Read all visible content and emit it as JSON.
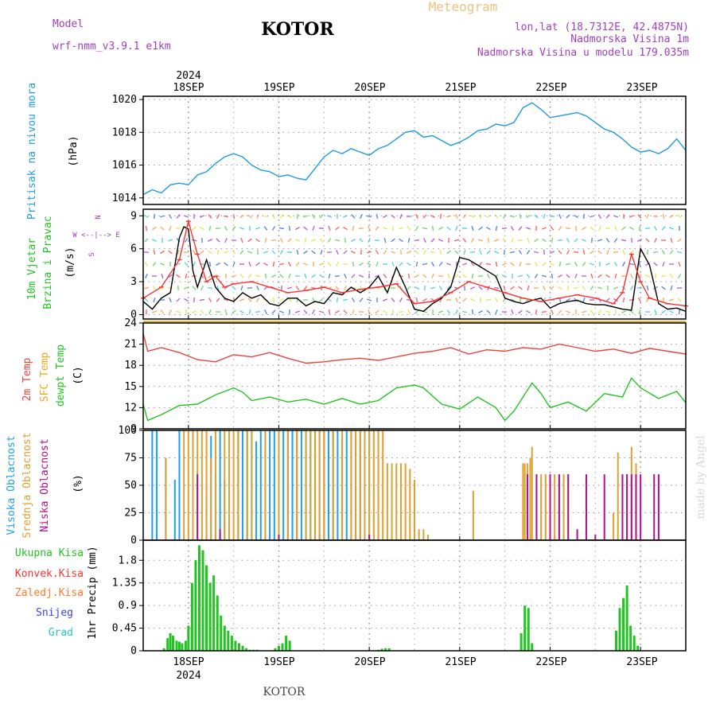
{
  "header": {
    "model_label": "Model",
    "model_name": "wrf-nmm_v3.9.1 e1km",
    "title": "KOTOR",
    "meteogram": "Meteogram",
    "lonlat": "lon,lat (18.7312E, 42.4875N)",
    "elev": "Nadmorska Visina 1m",
    "elev_model": "Nadmorska Visina u modelu 179.035m",
    "footer": "KOTOR",
    "credit": "made by Angel"
  },
  "colors": {
    "pressure": "#1e9be0",
    "wind_speed": "#000000",
    "wind_gust": "#ff3030",
    "temp2m": "#e8443c",
    "sfc_temp": "#e8a820",
    "dewpt": "#22c422",
    "high_cloud": "#20a0e6",
    "mid_cloud": "#e0a030",
    "low_cloud": "#b0108e",
    "precip_total": "#22c422",
    "precip_conv": "#ff3030",
    "precip_frozen": "#ff7a2a",
    "snow": "#4040e0",
    "hail": "#20c8c8"
  },
  "time_axis": {
    "year": "2024",
    "days": [
      "18SEP",
      "19SEP",
      "20SEP",
      "21SEP",
      "22SEP",
      "23SEP"
    ]
  },
  "chart_data": [
    {
      "type": "line",
      "panel": "pressure",
      "ylabel": [
        "Pritisak na nivou mora",
        "(hPa)"
      ],
      "ylim": [
        1013.6,
        1020.2
      ],
      "yticks": [
        1014,
        1016,
        1018,
        1020
      ],
      "xlim": [
        17.5,
        23.5
      ],
      "grid": true,
      "series": [
        {
          "key": "pressure",
          "x": [
            17.5,
            17.6,
            17.7,
            17.8,
            17.9,
            18.0,
            18.1,
            18.2,
            18.3,
            18.4,
            18.5,
            18.6,
            18.7,
            18.8,
            18.9,
            19.0,
            19.1,
            19.2,
            19.3,
            19.4,
            19.5,
            19.6,
            19.7,
            19.8,
            19.9,
            20.0,
            20.1,
            20.2,
            20.3,
            20.4,
            20.5,
            20.6,
            20.7,
            20.8,
            20.9,
            21.0,
            21.1,
            21.2,
            21.3,
            21.4,
            21.5,
            21.6,
            21.7,
            21.8,
            21.9,
            22.0,
            22.1,
            22.2,
            22.3,
            22.4,
            22.5,
            22.6,
            22.7,
            22.8,
            22.9,
            23.0,
            23.1,
            23.2,
            23.3,
            23.4,
            23.5
          ],
          "y": [
            1014.2,
            1014.5,
            1014.3,
            1014.8,
            1014.9,
            1014.8,
            1015.4,
            1015.6,
            1016.1,
            1016.5,
            1016.7,
            1016.5,
            1016.0,
            1015.7,
            1015.6,
            1015.3,
            1015.4,
            1015.2,
            1015.1,
            1015.8,
            1016.5,
            1016.9,
            1016.7,
            1017.0,
            1016.8,
            1016.6,
            1017.0,
            1017.2,
            1017.6,
            1018.0,
            1018.1,
            1017.7,
            1017.8,
            1017.5,
            1017.2,
            1017.4,
            1017.7,
            1018.1,
            1018.2,
            1018.5,
            1018.4,
            1018.6,
            1019.5,
            1019.8,
            1019.4,
            1018.9,
            1019.0,
            1019.1,
            1019.2,
            1019.0,
            1018.6,
            1018.2,
            1018.0,
            1017.6,
            1017.1,
            1016.8,
            1016.9,
            1016.7,
            1017.0,
            1017.6,
            1016.9
          ]
        }
      ]
    },
    {
      "type": "line",
      "panel": "wind",
      "ylabel": [
        "10m Vjetar",
        "Brzina i Pravac",
        "(m/s)"
      ],
      "compass": [
        "N",
        "W <--|--> E",
        "S"
      ],
      "ylim": [
        -0.4,
        9.6
      ],
      "yticks": [
        0,
        3,
        6,
        9
      ],
      "xlim": [
        17.5,
        23.5
      ],
      "grid": true,
      "series": [
        {
          "key": "wind_speed",
          "name": "speed",
          "x": [
            17.5,
            17.6,
            17.7,
            17.8,
            17.9,
            17.95,
            18.0,
            18.05,
            18.1,
            18.2,
            18.3,
            18.4,
            18.5,
            18.6,
            18.7,
            18.8,
            18.9,
            19.0,
            19.1,
            19.2,
            19.3,
            19.4,
            19.5,
            19.6,
            19.7,
            19.8,
            19.9,
            20.0,
            20.1,
            20.2,
            20.3,
            20.4,
            20.5,
            20.6,
            20.7,
            20.8,
            20.9,
            21.0,
            21.1,
            21.2,
            21.3,
            21.4,
            21.5,
            21.6,
            21.7,
            21.8,
            21.9,
            22.0,
            22.1,
            22.2,
            22.3,
            22.4,
            22.5,
            22.6,
            22.7,
            22.8,
            22.9,
            23.0,
            23.1,
            23.2,
            23.3,
            23.4,
            23.5
          ],
          "y": [
            1.2,
            0.5,
            1.5,
            2.0,
            7.0,
            8.0,
            7.8,
            4.0,
            2.5,
            5.0,
            2.5,
            1.5,
            1.2,
            2.0,
            1.5,
            1.8,
            1.0,
            0.8,
            1.5,
            1.5,
            0.8,
            1.2,
            1.0,
            2.0,
            1.8,
            2.5,
            2.0,
            2.5,
            3.5,
            2.0,
            4.3,
            2.5,
            0.5,
            0.3,
            1.0,
            1.5,
            2.5,
            5.2,
            5.0,
            4.5,
            4.0,
            3.5,
            1.5,
            1.2,
            1.0,
            1.3,
            1.5,
            0.6,
            1.0,
            1.2,
            1.3,
            1.0,
            0.9,
            0.9,
            0.7,
            0.5,
            0.4,
            6.0,
            4.5,
            1.0,
            0.5,
            0.6,
            0.3
          ]
        },
        {
          "key": "wind_gust",
          "name": "gust",
          "x": [
            17.5,
            17.7,
            17.9,
            18.0,
            18.1,
            18.2,
            18.3,
            18.4,
            18.5,
            18.7,
            18.9,
            19.1,
            19.3,
            19.5,
            19.7,
            19.9,
            20.1,
            20.3,
            20.5,
            20.7,
            20.9,
            21.1,
            21.3,
            21.5,
            21.7,
            21.9,
            22.1,
            22.3,
            22.5,
            22.7,
            22.8,
            22.9,
            23.0,
            23.1,
            23.3,
            23.5
          ],
          "y": [
            1.5,
            2.5,
            5.0,
            8.5,
            5.5,
            3.0,
            3.5,
            2.5,
            2.8,
            3.0,
            2.5,
            2.0,
            2.2,
            2.5,
            2.0,
            2.3,
            2.5,
            2.8,
            1.0,
            1.2,
            2.0,
            3.0,
            2.5,
            2.0,
            1.5,
            1.2,
            1.5,
            1.8,
            1.5,
            1.0,
            2.0,
            5.5,
            3.0,
            1.5,
            1.0,
            0.8
          ]
        }
      ]
    },
    {
      "type": "line",
      "panel": "temperature",
      "ylabel": [
        "2m Temp",
        "SFC Temp",
        "dewpt Temp",
        "(C)"
      ],
      "ylim": [
        9,
        24
      ],
      "yticks": [
        9,
        12,
        15,
        18,
        21,
        24
      ],
      "xlim": [
        17.5,
        23.5
      ],
      "grid": true,
      "series": [
        {
          "key": "temp2m",
          "name": "2m Temp",
          "x": [
            17.5,
            17.55,
            17.7,
            17.9,
            18.1,
            18.3,
            18.5,
            18.7,
            18.9,
            19.1,
            19.3,
            19.5,
            19.7,
            19.9,
            20.1,
            20.3,
            20.5,
            20.7,
            20.9,
            21.1,
            21.3,
            21.5,
            21.7,
            21.9,
            22.1,
            22.3,
            22.5,
            22.7,
            22.9,
            23.1,
            23.3,
            23.5
          ],
          "y": [
            22.5,
            20.0,
            20.5,
            19.8,
            18.8,
            18.5,
            19.5,
            19.2,
            19.8,
            19.0,
            18.3,
            18.5,
            18.8,
            19.0,
            18.7,
            19.2,
            19.7,
            20.0,
            20.5,
            19.6,
            20.2,
            20.0,
            20.5,
            20.3,
            21.0,
            20.5,
            20.0,
            20.3,
            19.7,
            20.4,
            20.0,
            19.6
          ]
        },
        {
          "key": "sfc_temp",
          "name": "SFC Temp",
          "x": [
            17.5,
            23.5
          ],
          "y": [
            24.2,
            24.2
          ]
        },
        {
          "key": "dewpt",
          "name": "dewpt Temp",
          "x": [
            17.5,
            17.55,
            17.7,
            17.9,
            18.1,
            18.3,
            18.5,
            18.6,
            18.7,
            18.9,
            19.1,
            19.3,
            19.5,
            19.7,
            19.9,
            20.1,
            20.3,
            20.5,
            20.6,
            20.8,
            21.0,
            21.2,
            21.4,
            21.5,
            21.6,
            21.8,
            21.9,
            22.0,
            22.2,
            22.4,
            22.6,
            22.8,
            22.9,
            23.0,
            23.2,
            23.4,
            23.5
          ],
          "y": [
            12.5,
            10.2,
            11.0,
            12.3,
            12.5,
            13.8,
            14.8,
            14.2,
            13.0,
            13.5,
            12.8,
            13.2,
            12.5,
            13.3,
            12.5,
            13.0,
            14.8,
            15.2,
            14.8,
            12.5,
            11.8,
            13.5,
            12.0,
            10.2,
            11.5,
            15.5,
            14.0,
            12.0,
            12.8,
            11.5,
            14.0,
            13.5,
            16.2,
            14.8,
            13.3,
            14.3,
            12.7
          ]
        }
      ]
    },
    {
      "type": "bar",
      "panel": "cloud",
      "ylabel": [
        "Visoka Oblacnost",
        "Srednja Oblacnost",
        "Niska Oblacnost",
        "(%)"
      ],
      "ylim": [
        0,
        100
      ],
      "yticks": [
        0,
        25,
        50,
        75,
        100
      ],
      "xlim": [
        17.5,
        23.5
      ],
      "grid": true,
      "series": [
        {
          "key": "high_cloud",
          "name": "Visoka Oblacnost",
          "x": [
            17.6,
            17.65,
            17.75,
            17.85,
            17.9,
            18.2,
            18.25,
            18.3,
            18.35,
            18.4,
            18.55,
            18.6,
            18.65,
            18.7,
            18.75,
            18.8,
            18.85,
            18.9,
            18.95,
            19.0,
            19.05,
            19.1,
            19.15,
            19.2,
            19.25,
            19.3,
            19.35,
            19.4,
            19.45,
            19.5,
            19.55,
            19.6,
            19.65,
            19.7,
            19.75,
            19.8,
            19.85,
            19.9,
            19.95,
            20.0
          ],
          "y": [
            100,
            100,
            75,
            55,
            100,
            40,
            95,
            60,
            100,
            55,
            100,
            100,
            100,
            100,
            90,
            100,
            100,
            100,
            100,
            95,
            100,
            100,
            100,
            100,
            100,
            100,
            100,
            100,
            100,
            100,
            100,
            100,
            100,
            95,
            100,
            100,
            95,
            100,
            100,
            100
          ]
        },
        {
          "key": "mid_cloud",
          "name": "Srednja Oblacnost",
          "x": [
            17.75,
            17.95,
            18.0,
            18.05,
            18.1,
            18.15,
            18.2,
            18.25,
            18.3,
            18.4,
            18.45,
            18.5,
            18.55,
            18.65,
            18.7,
            18.85,
            19.0,
            19.1,
            19.2,
            19.3,
            19.35,
            19.4,
            19.45,
            19.5,
            19.6,
            19.7,
            19.8,
            19.85,
            19.9,
            19.95,
            20.0,
            20.05,
            20.1,
            20.15,
            20.2,
            20.25,
            20.3,
            20.35,
            20.4,
            20.45,
            20.5,
            20.55,
            20.6,
            20.65,
            21.15,
            21.7,
            21.72,
            21.75,
            21.78,
            21.8,
            21.85,
            21.9,
            21.95,
            22.0,
            22.05,
            22.1,
            22.15,
            22.2,
            22.7,
            22.75,
            22.8,
            22.85,
            22.9,
            22.95
          ],
          "y": [
            75,
            100,
            100,
            100,
            100,
            100,
            100,
            75,
            100,
            100,
            100,
            100,
            100,
            100,
            100,
            100,
            100,
            100,
            100,
            100,
            100,
            100,
            100,
            100,
            100,
            100,
            100,
            100,
            100,
            100,
            100,
            100,
            100,
            100,
            70,
            70,
            70,
            70,
            70,
            65,
            55,
            10,
            10,
            5,
            45,
            70,
            70,
            70,
            75,
            85,
            60,
            60,
            60,
            60,
            60,
            60,
            60,
            60,
            25,
            80,
            60,
            60,
            85,
            70
          ]
        },
        {
          "key": "low_cloud",
          "name": "Niska Oblacnost",
          "x": [
            18.1,
            18.35,
            19.0,
            20.0,
            21.75,
            21.85,
            22.0,
            22.1,
            22.2,
            22.3,
            22.4,
            22.5,
            22.6,
            22.8,
            22.85,
            22.9,
            22.95,
            23.0,
            23.15,
            23.2
          ],
          "y": [
            60,
            10,
            5,
            5,
            60,
            60,
            60,
            60,
            60,
            10,
            60,
            5,
            60,
            60,
            60,
            60,
            60,
            60,
            60,
            60
          ]
        }
      ]
    },
    {
      "type": "bar",
      "panel": "precip",
      "ylabel": [
        "1hr Precip (mm)"
      ],
      "legend": [
        "Ukupna Kisa",
        "Konvek.Kisa",
        "Zaledj.Kisa",
        "Snijeg",
        "Grad"
      ],
      "ylim": [
        0,
        2.2
      ],
      "yticks": [
        0,
        0.45,
        0.9,
        1.35,
        1.8
      ],
      "xlim": [
        17.5,
        23.5
      ],
      "grid": true,
      "series": [
        {
          "key": "precip_total",
          "name": "Ukupna Kisa",
          "x": [
            17.73,
            17.77,
            17.8,
            17.83,
            17.87,
            17.9,
            17.93,
            17.97,
            18.0,
            18.04,
            18.08,
            18.12,
            18.16,
            18.2,
            18.24,
            18.28,
            18.32,
            18.36,
            18.4,
            18.44,
            18.48,
            18.52,
            18.56,
            18.6,
            18.64,
            18.68,
            18.72,
            18.76,
            18.96,
            19.0,
            19.04,
            19.08,
            19.12,
            20.1,
            20.14,
            20.18,
            20.22,
            21.68,
            21.72,
            21.76,
            21.8,
            22.73,
            22.77,
            22.81,
            22.85,
            22.89,
            22.93,
            22.97
          ],
          "y": [
            0.05,
            0.25,
            0.35,
            0.3,
            0.2,
            0.18,
            0.15,
            0.2,
            0.5,
            1.35,
            1.8,
            2.1,
            2.0,
            1.7,
            1.35,
            1.5,
            1.1,
            0.7,
            0.5,
            0.4,
            0.3,
            0.2,
            0.15,
            0.1,
            0.05,
            0.02,
            0.02,
            0.02,
            0.05,
            0.1,
            0.15,
            0.3,
            0.2,
            0.02,
            0.04,
            0.05,
            0.05,
            0.35,
            0.9,
            0.85,
            0.15,
            0.4,
            0.85,
            1.05,
            1.3,
            0.5,
            0.3,
            0.1
          ]
        }
      ]
    }
  ]
}
